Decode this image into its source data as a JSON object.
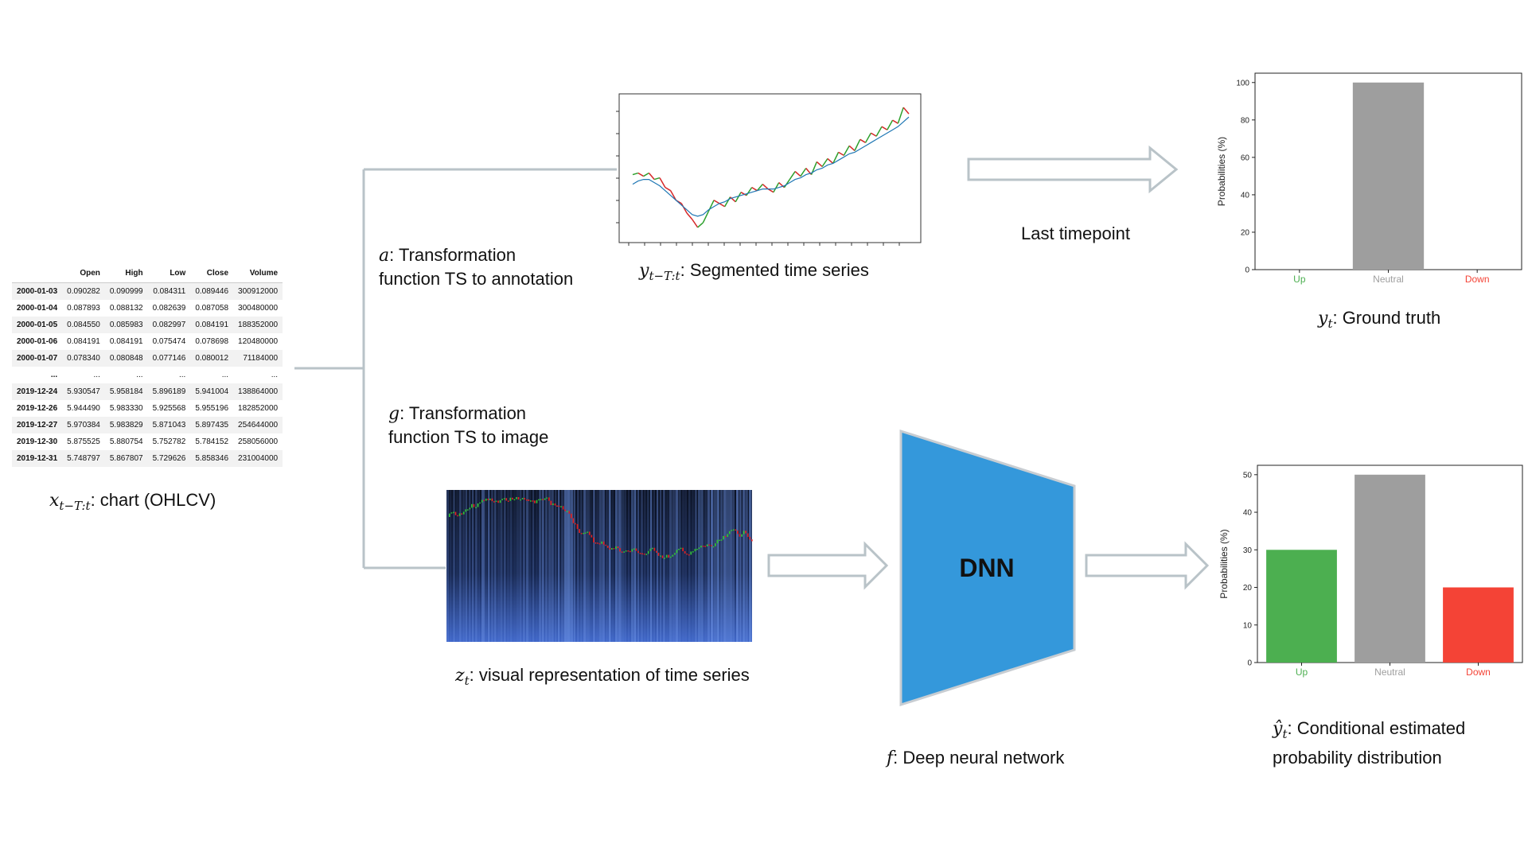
{
  "table": {
    "columns": [
      "",
      "Open",
      "High",
      "Low",
      "Close",
      "Volume"
    ],
    "rows": [
      [
        "2000-01-03",
        "0.090282",
        "0.090999",
        "0.084311",
        "0.089446",
        "300912000"
      ],
      [
        "2000-01-04",
        "0.087893",
        "0.088132",
        "0.082639",
        "0.087058",
        "300480000"
      ],
      [
        "2000-01-05",
        "0.084550",
        "0.085983",
        "0.082997",
        "0.084191",
        "188352000"
      ],
      [
        "2000-01-06",
        "0.084191",
        "0.084191",
        "0.075474",
        "0.078698",
        "120480000"
      ],
      [
        "2000-01-07",
        "0.078340",
        "0.080848",
        "0.077146",
        "0.080012",
        "71184000"
      ],
      [
        "...",
        "...",
        "...",
        "...",
        "...",
        "..."
      ],
      [
        "2019-12-24",
        "5.930547",
        "5.958184",
        "5.896189",
        "5.941004",
        "138864000"
      ],
      [
        "2019-12-26",
        "5.944490",
        "5.983330",
        "5.925568",
        "5.955196",
        "182852000"
      ],
      [
        "2019-12-27",
        "5.970384",
        "5.983829",
        "5.871043",
        "5.897435",
        "254644000"
      ],
      [
        "2019-12-30",
        "5.875525",
        "5.880754",
        "5.752782",
        "5.784152",
        "258056000"
      ],
      [
        "2019-12-31",
        "5.748797",
        "5.867807",
        "5.729626",
        "5.858346",
        "231004000"
      ]
    ]
  },
  "labels": {
    "x_sym": "x",
    "x_sub": "t−T:t",
    "x_text": ": chart (OHLCV)",
    "a_sym": "a",
    "a_line1": ": Transformation",
    "a_line2": "function TS to annotation",
    "g_sym": "g",
    "g_line1": ": Transformation",
    "g_line2": "function TS to image",
    "y_seg_sym": "y",
    "y_seg_sub": "t−T:t",
    "y_seg_text": ": Segmented time series",
    "last_timepoint": "Last timepoint",
    "y_gt_sym": "y",
    "y_gt_sub": "t",
    "y_gt_text": ": Ground truth",
    "z_sym": "z",
    "z_sub": "t",
    "z_text": ": visual representation of time series",
    "dnn": "DNN",
    "f_sym": "f",
    "f_text": ": Deep neural network",
    "yhat_sym": "ŷ",
    "yhat_sub": "t",
    "yhat_line1": ": Conditional estimated",
    "yhat_line2": "probability distribution"
  },
  "colors": {
    "up": "#4caf50",
    "neutral": "#9e9e9e",
    "down": "#f44336",
    "dnn": "#3498db",
    "connector": "#b9c3c8",
    "arrow": "#b9c3c8"
  },
  "chart_data": [
    {
      "type": "bar",
      "id": "ground-truth",
      "categories": [
        "Up",
        "Neutral",
        "Down"
      ],
      "values": [
        0,
        100,
        0
      ],
      "ylabel": "Probabilities (%)",
      "ylim": [
        0,
        105
      ],
      "yticks": [
        0,
        20,
        40,
        60,
        80,
        100
      ],
      "bar_colors": [
        "#4caf50",
        "#9e9e9e",
        "#f44336"
      ],
      "tick_label_colors": [
        "#4caf50",
        "#9e9e9e",
        "#f44336"
      ]
    },
    {
      "type": "bar",
      "id": "estimated",
      "categories": [
        "Up",
        "Neutral",
        "Down"
      ],
      "values": [
        30,
        50,
        20
      ],
      "ylabel": "Probabilities (%)",
      "ylim": [
        0,
        52.5
      ],
      "yticks": [
        0,
        10,
        20,
        30,
        40,
        50
      ],
      "bar_colors": [
        "#4caf50",
        "#9e9e9e",
        "#f44336"
      ],
      "tick_label_colors": [
        "#4caf50",
        "#9e9e9e",
        "#f44336"
      ]
    },
    {
      "type": "line",
      "id": "segmented-series",
      "series": [
        {
          "values": [
            58,
            59,
            57,
            59,
            55,
            56,
            50,
            48,
            42,
            40,
            34,
            30,
            25,
            28,
            35,
            42,
            40,
            38,
            44,
            41,
            47,
            45,
            50,
            48,
            52,
            49,
            47,
            53,
            50,
            55,
            60,
            57,
            62,
            58,
            66,
            63,
            68,
            65,
            72,
            70,
            76,
            73,
            80,
            78,
            84,
            82,
            88,
            86,
            92,
            90,
            100,
            96
          ]
        },
        {
          "values": [
            52,
            54,
            55,
            55,
            53,
            51,
            48,
            45,
            42,
            39,
            36,
            33,
            32,
            33,
            36,
            38,
            40,
            41,
            43,
            44,
            45,
            46,
            47,
            48,
            49,
            49,
            49,
            50,
            51,
            53,
            55,
            56,
            58,
            59,
            61,
            62,
            64,
            65,
            67,
            69,
            71,
            72,
            74,
            76,
            78,
            80,
            82,
            84,
            86,
            88,
            91,
            94
          ]
        }
      ],
      "ylim": [
        20,
        105
      ]
    }
  ]
}
